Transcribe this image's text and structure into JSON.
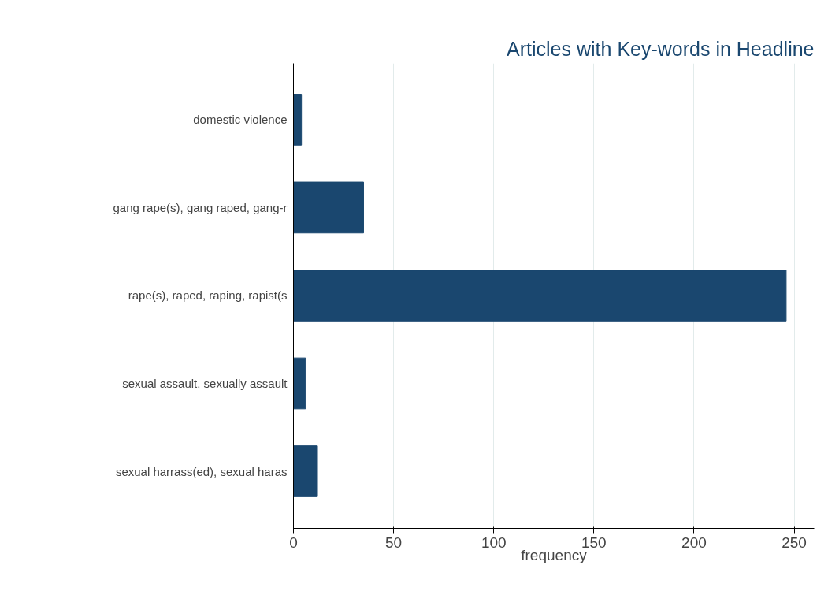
{
  "chart_data": {
    "type": "bar",
    "orientation": "horizontal",
    "title": "Articles with Key-words in Headline",
    "xlabel": "frequency",
    "categories": [
      "domestic violence",
      "gang rape(s), gang raped, gang-r",
      "rape(s), raped, raping, rapist(s",
      "sexual assault, sexually assault",
      "sexual harrass(ed), sexual haras"
    ],
    "values": [
      4,
      35,
      246,
      6,
      12
    ],
    "color": "#1a476f",
    "xlim": [
      0,
      260
    ],
    "xticks": [
      0,
      50,
      100,
      150,
      200,
      250
    ],
    "grid": "x"
  }
}
